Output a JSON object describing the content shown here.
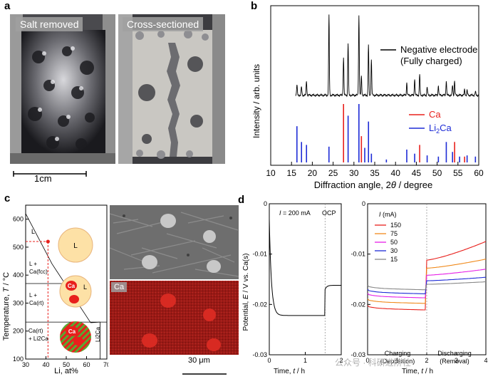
{
  "panels": {
    "a": "a",
    "b": "b",
    "c": "c",
    "d": "d"
  },
  "panel_a": {
    "left_label": "Salt removed",
    "right_label": "Cross-sectioned",
    "scale_bar": "1cm"
  },
  "panel_c_images": {
    "ca_label": "Ca",
    "scale_bar": "30 μm"
  },
  "chart_data": [
    {
      "id": "b",
      "type": "line",
      "xlabel_prefix": "Diffraction angle, 2",
      "xlabel_theta": "θ",
      "xlabel_suffix": " / degree",
      "ylabel": "Intensity / arb. units",
      "xlim": [
        10,
        60
      ],
      "xticks": [
        "10",
        "15",
        "20",
        "25",
        "30",
        "35",
        "40",
        "45",
        "50",
        "55",
        "60"
      ],
      "series": [
        {
          "name": "Negative electrode",
          "name2": "(Fully charged)"
        }
      ],
      "references": [
        {
          "name": "Ca",
          "color": "#e8201c",
          "peaks": [
            [
              27.5,
              1.0
            ],
            [
              31.8,
              0.45
            ],
            [
              45.8,
              0.3
            ],
            [
              54.2,
              0.35
            ],
            [
              56.6,
              0.1
            ]
          ]
        },
        {
          "name": "Li",
          "sub": "2",
          "suffix": "Ca",
          "color": "#1d2bd6",
          "peaks": [
            [
              16.3,
              0.62
            ],
            [
              17.4,
              0.35
            ],
            [
              18.6,
              0.3
            ],
            [
              24.0,
              0.27
            ],
            [
              28.6,
              0.8
            ],
            [
              31.2,
              1.0
            ],
            [
              32.6,
              0.25
            ],
            [
              33.5,
              0.7
            ],
            [
              34.2,
              0.15
            ],
            [
              37.8,
              0.05
            ],
            [
              42.7,
              0.22
            ],
            [
              44.6,
              0.15
            ],
            [
              47.6,
              0.12
            ],
            [
              50.3,
              0.1
            ],
            [
              52.2,
              0.35
            ],
            [
              53.7,
              0.18
            ],
            [
              55.4,
              0.1
            ],
            [
              57.2,
              0.12
            ],
            [
              59.2,
              0.1
            ]
          ]
        }
      ]
    },
    {
      "id": "c",
      "type": "line",
      "xlabel": "Li, at%",
      "ylabel_prefix": "Temperature, ",
      "ylabel_italic": "T",
      "ylabel_suffix": " / °C",
      "xlim": [
        30,
        70
      ],
      "ylim": [
        100,
        650
      ],
      "xticks": [
        "30",
        "40",
        "50",
        "60",
        "70"
      ],
      "yticks": [
        "100",
        "200",
        "300",
        "400",
        "500",
        "600"
      ],
      "regions": [
        {
          "text": "L"
        },
        {
          "text": "L +",
          "text2": "Ca(fcc)"
        },
        {
          "text": "L +",
          "text2": "Ca(rt)"
        },
        {
          "text": "Ca(rt)",
          "text2": "+ Li2Ca"
        },
        {
          "text": "Li2Ca"
        }
      ],
      "marker": {
        "x": 41,
        "y": 520
      },
      "sketch_labels": {
        "L": "L",
        "Ca": "Ca"
      }
    },
    {
      "id": "d",
      "type": "line",
      "ylabel_prefix": "Potential, ",
      "ylabel_italic": "E",
      "ylabel_suffix": " / V vs. Ca(s)",
      "xlabel_prefix": "Time, ",
      "xlabel_italic": "t",
      "xlabel_suffix": " / h",
      "ylim": [
        -0.03,
        0
      ],
      "yticks": [
        "0",
        "-0.01",
        "-0.02",
        "-0.03"
      ],
      "left": {
        "xlim": [
          0,
          2
        ],
        "xticks": [
          "0",
          "1",
          "2"
        ],
        "annotation_italic": "I",
        "annotation": " = 200 mA",
        "ocp": "OCP",
        "switch_t": 1.55
      },
      "right": {
        "xlim": [
          0,
          4
        ],
        "xticks": [
          "0",
          "1",
          "2",
          "3",
          "4"
        ],
        "legend_title_italic": "I",
        "legend_title": " (mA)",
        "charging": "Charging",
        "charging2": "(Deposition)",
        "discharging": "Discharging",
        "discharging2": "(Removal)",
        "series": [
          {
            "name": "150",
            "color": "#e8201c",
            "charge": -0.0208,
            "dis_start": -0.0112,
            "dis_end": -0.0075
          },
          {
            "name": "75",
            "color": "#f08a1c",
            "charge": -0.0195,
            "dis_start": -0.0128,
            "dis_end": -0.011
          },
          {
            "name": "50",
            "color": "#e61ee6",
            "charge": -0.0184,
            "dis_start": -0.0142,
            "dis_end": -0.013
          },
          {
            "name": "30",
            "color": "#1d2bd6",
            "charge": -0.0176,
            "dis_start": -0.0153,
            "dis_end": -0.0146
          },
          {
            "name": "15",
            "color": "#888888",
            "charge": -0.0168,
            "dis_start": -0.016,
            "dis_end": -0.0155
          }
        ]
      }
    }
  ],
  "watermark": "公众号 · 科研进阶社"
}
